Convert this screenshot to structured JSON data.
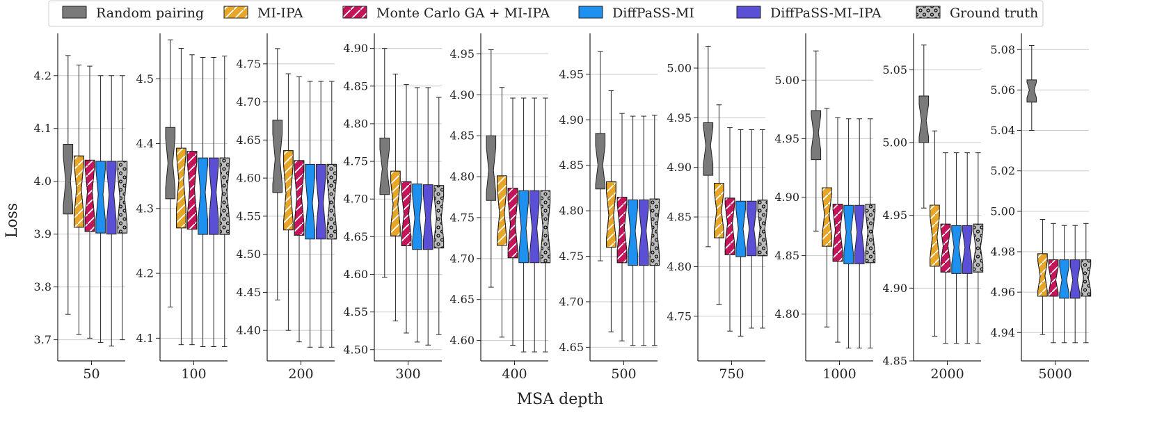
{
  "chart_data": {
    "type": "box",
    "ylabel": "Loss",
    "xlabel": "MSA depth",
    "grid": "horizontal",
    "legend_position": "top",
    "legend": [
      {
        "name": "Random pairing",
        "color": "#7a7a7a",
        "hatch": "none"
      },
      {
        "name": "MI-IPA",
        "color": "#e8a628",
        "hatch": "slash"
      },
      {
        "name": "Monte Carlo GA + MI-IPA",
        "color": "#c4145a",
        "hatch": "slash"
      },
      {
        "name": "DiffPaSS-MI",
        "color": "#1e90f0",
        "hatch": "none"
      },
      {
        "name": "DiffPaSS-MI–IPA",
        "color": "#5b4fd6",
        "hatch": "none"
      },
      {
        "name": "Ground truth",
        "color": "#bdbdbd",
        "hatch": "dots"
      }
    ],
    "panels": [
      {
        "category": "50",
        "ylim": [
          3.66,
          4.28
        ],
        "ticks": [
          "3.7",
          "3.8",
          "3.9",
          "4.0",
          "4.1",
          "4.2"
        ],
        "boxes": [
          {
            "series": "Random pairing",
            "whisker_low": 3.748,
            "q1": 3.938,
            "median": 4.0,
            "q3": 4.07,
            "whisker_high": 4.238
          },
          {
            "series": "MI-IPA",
            "whisker_low": 3.71,
            "q1": 3.913,
            "median": 3.985,
            "q3": 4.048,
            "whisker_high": 4.22
          },
          {
            "series": "Monte Carlo GA + MI-IPA",
            "whisker_low": 3.703,
            "q1": 3.905,
            "median": 3.98,
            "q3": 4.04,
            "whisker_high": 4.218
          },
          {
            "series": "DiffPaSS-MI",
            "whisker_low": 3.695,
            "q1": 3.902,
            "median": 3.975,
            "q3": 4.038,
            "whisker_high": 4.2
          },
          {
            "series": "DiffPaSS-MI–IPA",
            "whisker_low": 3.688,
            "q1": 3.9,
            "median": 3.975,
            "q3": 4.038,
            "whisker_high": 4.2
          },
          {
            "series": "Ground truth",
            "whisker_low": 3.7,
            "q1": 3.902,
            "median": 3.968,
            "q3": 4.038,
            "whisker_high": 4.2
          }
        ]
      },
      {
        "category": "100",
        "ylim": [
          4.065,
          4.57
        ],
        "ticks": [
          "4.1",
          "4.2",
          "4.3",
          "4.4",
          "4.5"
        ],
        "boxes": [
          {
            "series": "Random pairing",
            "whisker_low": 4.148,
            "q1": 4.315,
            "median": 4.37,
            "q3": 4.425,
            "whisker_high": 4.56
          },
          {
            "series": "MI-IPA",
            "whisker_low": 4.09,
            "q1": 4.27,
            "median": 4.343,
            "q3": 4.393,
            "whisker_high": 4.547
          },
          {
            "series": "Monte Carlo GA + MI-IPA",
            "whisker_low": 4.09,
            "q1": 4.268,
            "median": 4.33,
            "q3": 4.388,
            "whisker_high": 4.537
          },
          {
            "series": "DiffPaSS-MI",
            "whisker_low": 4.087,
            "q1": 4.26,
            "median": 4.325,
            "q3": 4.378,
            "whisker_high": 4.533
          },
          {
            "series": "DiffPaSS-MI–IPA",
            "whisker_low": 4.087,
            "q1": 4.26,
            "median": 4.325,
            "q3": 4.378,
            "whisker_high": 4.533
          },
          {
            "series": "Ground truth",
            "whisker_low": 4.087,
            "q1": 4.26,
            "median": 4.325,
            "q3": 4.378,
            "whisker_high": 4.535
          }
        ]
      },
      {
        "category": "200",
        "ylim": [
          4.36,
          4.79
        ],
        "ticks": [
          "4.40",
          "4.45",
          "4.50",
          "4.55",
          "4.60",
          "4.65",
          "4.70",
          "4.75"
        ],
        "boxes": [
          {
            "series": "Random pairing",
            "whisker_low": 4.44,
            "q1": 4.581,
            "median": 4.625,
            "q3": 4.676,
            "whisker_high": 4.77
          },
          {
            "series": "MI-IPA",
            "whisker_low": 4.4,
            "q1": 4.532,
            "median": 4.58,
            "q3": 4.636,
            "whisker_high": 4.737
          },
          {
            "series": "Monte Carlo GA + MI-IPA",
            "whisker_low": 4.385,
            "q1": 4.525,
            "median": 4.575,
            "q3": 4.623,
            "whisker_high": 4.733
          },
          {
            "series": "DiffPaSS-MI",
            "whisker_low": 4.378,
            "q1": 4.52,
            "median": 4.567,
            "q3": 4.618,
            "whisker_high": 4.727
          },
          {
            "series": "DiffPaSS-MI–IPA",
            "whisker_low": 4.378,
            "q1": 4.52,
            "median": 4.567,
            "q3": 4.618,
            "whisker_high": 4.727
          },
          {
            "series": "Ground truth",
            "whisker_low": 4.378,
            "q1": 4.52,
            "median": 4.567,
            "q3": 4.618,
            "whisker_high": 4.727
          }
        ]
      },
      {
        "category": "300",
        "ylim": [
          4.485,
          4.92
        ],
        "ticks": [
          "4.50",
          "4.55",
          "4.60",
          "4.65",
          "4.70",
          "4.75",
          "4.80",
          "4.85",
          "4.90"
        ],
        "boxes": [
          {
            "series": "Random pairing",
            "whisker_low": 4.596,
            "q1": 4.706,
            "median": 4.74,
            "q3": 4.781,
            "whisker_high": 4.9
          },
          {
            "series": "MI-IPA",
            "whisker_low": 4.538,
            "q1": 4.651,
            "median": 4.693,
            "q3": 4.737,
            "whisker_high": 4.866
          },
          {
            "series": "Monte Carlo GA + MI-IPA",
            "whisker_low": 4.522,
            "q1": 4.638,
            "median": 4.68,
            "q3": 4.723,
            "whisker_high": 4.852
          },
          {
            "series": "DiffPaSS-MI",
            "whisker_low": 4.51,
            "q1": 4.633,
            "median": 4.675,
            "q3": 4.72,
            "whisker_high": 4.848
          },
          {
            "series": "DiffPaSS-MI–IPA",
            "whisker_low": 4.506,
            "q1": 4.633,
            "median": 4.675,
            "q3": 4.719,
            "whisker_high": 4.848
          },
          {
            "series": "Ground truth",
            "whisker_low": 4.52,
            "q1": 4.635,
            "median": 4.675,
            "q3": 4.718,
            "whisker_high": 4.835
          }
        ]
      },
      {
        "category": "400",
        "ylim": [
          4.575,
          4.975
        ],
        "ticks": [
          "4.60",
          "4.65",
          "4.70",
          "4.75",
          "4.80",
          "4.85",
          "4.90",
          "4.95"
        ],
        "boxes": [
          {
            "series": "Random pairing",
            "whisker_low": 4.665,
            "q1": 4.771,
            "median": 4.808,
            "q3": 4.85,
            "whisker_high": 4.955
          },
          {
            "series": "MI-IPA",
            "whisker_low": 4.604,
            "q1": 4.716,
            "median": 4.755,
            "q3": 4.801,
            "whisker_high": 4.909
          },
          {
            "series": "Monte Carlo GA + MI-IPA",
            "whisker_low": 4.594,
            "q1": 4.701,
            "median": 4.742,
            "q3": 4.786,
            "whisker_high": 4.896
          },
          {
            "series": "DiffPaSS-MI",
            "whisker_low": 4.586,
            "q1": 4.695,
            "median": 4.737,
            "q3": 4.783,
            "whisker_high": 4.896
          },
          {
            "series": "DiffPaSS-MI–IPA",
            "whisker_low": 4.586,
            "q1": 4.695,
            "median": 4.737,
            "q3": 4.783,
            "whisker_high": 4.896
          },
          {
            "series": "Ground truth",
            "whisker_low": 4.586,
            "q1": 4.695,
            "median": 4.737,
            "q3": 4.783,
            "whisker_high": 4.896
          }
        ]
      },
      {
        "category": "500",
        "ylim": [
          4.635,
          4.995
        ],
        "ticks": [
          "4.65",
          "4.70",
          "4.75",
          "4.80",
          "4.85",
          "4.90",
          "4.95"
        ],
        "boxes": [
          {
            "series": "Random pairing",
            "whisker_low": 4.745,
            "q1": 4.824,
            "median": 4.85,
            "q3": 4.885,
            "whisker_high": 4.975
          },
          {
            "series": "MI-IPA",
            "whisker_low": 4.667,
            "q1": 4.76,
            "median": 4.795,
            "q3": 4.832,
            "whisker_high": 4.932
          },
          {
            "series": "Monte Carlo GA + MI-IPA",
            "whisker_low": 4.657,
            "q1": 4.743,
            "median": 4.782,
            "q3": 4.815,
            "whisker_high": 4.907
          },
          {
            "series": "DiffPaSS-MI",
            "whisker_low": 4.652,
            "q1": 4.74,
            "median": 4.778,
            "q3": 4.812,
            "whisker_high": 4.904
          },
          {
            "series": "DiffPaSS-MI–IPA",
            "whisker_low": 4.652,
            "q1": 4.74,
            "median": 4.778,
            "q3": 4.812,
            "whisker_high": 4.904
          },
          {
            "series": "Ground truth",
            "whisker_low": 4.652,
            "q1": 4.74,
            "median": 4.778,
            "q3": 4.813,
            "whisker_high": 4.905
          }
        ]
      },
      {
        "category": "750",
        "ylim": [
          4.705,
          5.035
        ],
        "ticks": [
          "4.75",
          "4.80",
          "4.85",
          "4.90",
          "4.95",
          "5.00"
        ],
        "boxes": [
          {
            "series": "Random pairing",
            "whisker_low": 4.82,
            "q1": 4.892,
            "median": 4.922,
            "q3": 4.945,
            "whisker_high": 5.022
          },
          {
            "series": "MI-IPA",
            "whisker_low": 4.762,
            "q1": 4.829,
            "median": 4.856,
            "q3": 4.884,
            "whisker_high": 4.963
          },
          {
            "series": "Monte Carlo GA + MI-IPA",
            "whisker_low": 4.735,
            "q1": 4.812,
            "median": 4.843,
            "q3": 4.869,
            "whisker_high": 4.94
          },
          {
            "series": "DiffPaSS-MI",
            "whisker_low": 4.73,
            "q1": 4.81,
            "median": 4.838,
            "q3": 4.866,
            "whisker_high": 4.938
          },
          {
            "series": "DiffPaSS-MI–IPA",
            "whisker_low": 4.738,
            "q1": 4.811,
            "median": 4.838,
            "q3": 4.866,
            "whisker_high": 4.938
          },
          {
            "series": "Ground truth",
            "whisker_low": 4.738,
            "q1": 4.811,
            "median": 4.838,
            "q3": 4.867,
            "whisker_high": 4.938
          }
        ]
      },
      {
        "category": "1000",
        "ylim": [
          4.76,
          5.04
        ],
        "ticks": [
          "4.80",
          "4.85",
          "4.90",
          "4.95",
          "5.00"
        ],
        "boxes": [
          {
            "series": "Random pairing",
            "whisker_low": 4.871,
            "q1": 4.932,
            "median": 4.955,
            "q3": 4.974,
            "whisker_high": 5.025
          },
          {
            "series": "MI-IPA",
            "whisker_low": 4.789,
            "q1": 4.858,
            "median": 4.885,
            "q3": 4.908,
            "whisker_high": 4.976
          },
          {
            "series": "Monte Carlo GA + MI-IPA",
            "whisker_low": 4.776,
            "q1": 4.845,
            "median": 4.872,
            "q3": 4.894,
            "whisker_high": 4.968
          },
          {
            "series": "DiffPaSS-MI",
            "whisker_low": 4.771,
            "q1": 4.843,
            "median": 4.87,
            "q3": 4.893,
            "whisker_high": 4.967
          },
          {
            "series": "DiffPaSS-MI–IPA",
            "whisker_low": 4.771,
            "q1": 4.843,
            "median": 4.87,
            "q3": 4.893,
            "whisker_high": 4.967
          },
          {
            "series": "Ground truth",
            "whisker_low": 4.771,
            "q1": 4.844,
            "median": 4.87,
            "q3": 4.894,
            "whisker_high": 4.967
          }
        ]
      },
      {
        "category": "2000",
        "ylim": [
          4.85,
          5.075
        ],
        "ticks": [
          "4.85",
          "4.90",
          "4.95",
          "5.00",
          "5.05"
        ],
        "boxes": [
          {
            "series": "Random pairing",
            "whisker_low": 4.955,
            "q1": 5.0,
            "median": 5.015,
            "q3": 5.032,
            "whisker_high": 5.067
          },
          {
            "series": "MI-IPA",
            "whisker_low": 4.867,
            "q1": 4.915,
            "median": 4.935,
            "q3": 4.957,
            "whisker_high": 5.008
          },
          {
            "series": "Monte Carlo GA + MI-IPA",
            "whisker_low": 4.862,
            "q1": 4.911,
            "median": 4.929,
            "q3": 4.944,
            "whisker_high": 4.993
          },
          {
            "series": "DiffPaSS-MI",
            "whisker_low": 4.862,
            "q1": 4.91,
            "median": 4.928,
            "q3": 4.943,
            "whisker_high": 4.993
          },
          {
            "series": "DiffPaSS-MI–IPA",
            "whisker_low": 4.862,
            "q1": 4.91,
            "median": 4.928,
            "q3": 4.943,
            "whisker_high": 4.993
          },
          {
            "series": "Ground truth",
            "whisker_low": 4.862,
            "q1": 4.911,
            "median": 4.928,
            "q3": 4.944,
            "whisker_high": 4.993
          }
        ]
      },
      {
        "category": "5000",
        "ylim": [
          4.926,
          5.088
        ],
        "ticks": [
          "4.94",
          "4.96",
          "4.98",
          "5.00",
          "5.02",
          "5.04",
          "5.06",
          "5.08"
        ],
        "boxes": [
          {
            "series": "Random pairing",
            "whisker_low": 5.04,
            "q1": 5.054,
            "median": 5.06,
            "q3": 5.065,
            "whisker_high": 5.082
          },
          {
            "series": "MI-IPA",
            "whisker_low": 4.939,
            "q1": 4.958,
            "median": 4.968,
            "q3": 4.979,
            "whisker_high": 4.996
          },
          {
            "series": "Monte Carlo GA + MI-IPA",
            "whisker_low": 4.935,
            "q1": 4.958,
            "median": 4.966,
            "q3": 4.976,
            "whisker_high": 4.994
          },
          {
            "series": "DiffPaSS-MI",
            "whisker_low": 4.935,
            "q1": 4.957,
            "median": 4.966,
            "q3": 4.976,
            "whisker_high": 4.993
          },
          {
            "series": "DiffPaSS-MI–IPA",
            "whisker_low": 4.935,
            "q1": 4.957,
            "median": 4.966,
            "q3": 4.976,
            "whisker_high": 4.993
          },
          {
            "series": "Ground truth",
            "whisker_low": 4.935,
            "q1": 4.958,
            "median": 4.967,
            "q3": 4.976,
            "whisker_high": 4.994
          }
        ]
      }
    ]
  }
}
